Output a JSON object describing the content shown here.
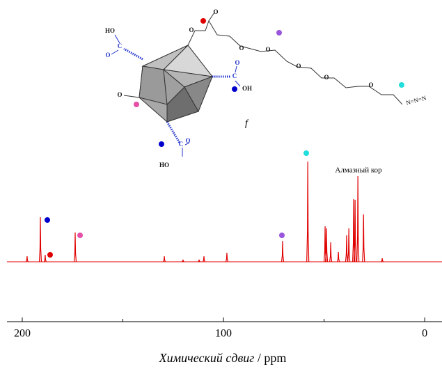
{
  "chart_data": {
    "type": "spectrum",
    "color": "#e00000",
    "xlim": [
      207.6,
      -8.6
    ],
    "xticks": [
      200,
      100,
      0
    ],
    "minor_xticks": [
      150,
      50
    ],
    "ylim": [
      0,
      150
    ],
    "x_label_parts": [
      "Химический сдвиг",
      " / ppm"
    ],
    "annotation": "Алмазный кор",
    "peaks": {
      "x": [
        197.6,
        191.0,
        188.6,
        173.7,
        129.4,
        120.1,
        112.1,
        109.7,
        98.3,
        70.6,
        58.1,
        49.5,
        48.8,
        46.7,
        42.9,
        38.8,
        37.7,
        35.3,
        34.6,
        33.2,
        30.4,
        21.1
      ],
      "values": [
        8,
        64,
        10,
        42,
        8,
        3,
        3,
        8,
        13,
        30,
        144,
        51,
        48,
        28,
        14,
        38,
        48,
        90,
        89,
        123,
        68,
        5
      ]
    },
    "molecule": {
      "label": "f",
      "atoms": [
        "HO",
        "C",
        "O",
        "O",
        "O",
        "O",
        "O",
        "O",
        "O",
        "O",
        "C",
        "O",
        "OH",
        "O",
        "C",
        "O",
        "HO",
        "N=N=N"
      ]
    }
  }
}
